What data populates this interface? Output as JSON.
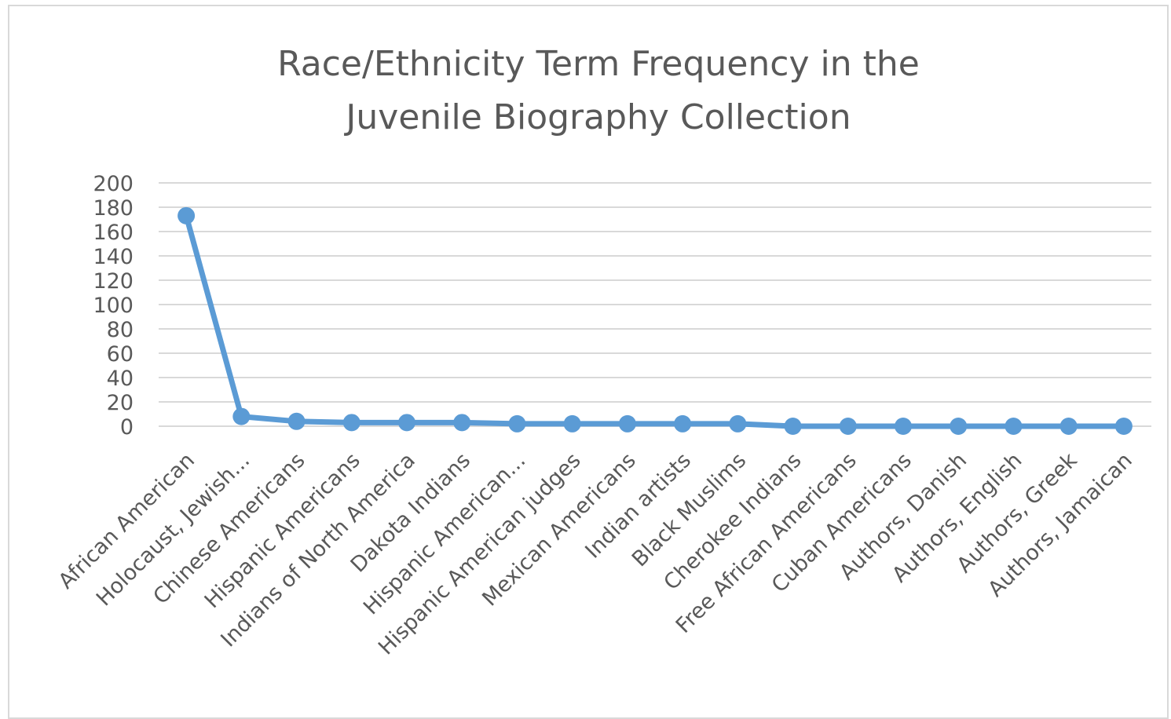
{
  "chart_data": {
    "type": "line",
    "title_lines": [
      "Race/Ethnicity Term Frequency in the",
      "Juvenile Biography Collection"
    ],
    "categories": [
      "African American",
      "Holocaust, Jewish...",
      "Chinese Americans",
      "Hispanic Americans",
      "Indians of North America",
      "Dakota Indians",
      "Hispanic American...",
      "Hispanic American judges",
      "Mexican Americans",
      "Indian artists",
      "Black Muslims",
      "Cherokee Indians",
      "Free African Americans",
      "Cuban Americans",
      "Authors, Danish",
      "Authors, English",
      "Authors, Greek",
      "Authors, Jamaican"
    ],
    "values": [
      173,
      8,
      4,
      3,
      3,
      3,
      2,
      2,
      2,
      2,
      2,
      0,
      0,
      0,
      0,
      0,
      0,
      0
    ],
    "ylim": [
      0,
      200
    ],
    "yticks": [
      "200",
      "180",
      "160",
      "140",
      "120",
      "100",
      "80",
      "60",
      "40",
      "20",
      "0"
    ],
    "grid": true,
    "legend": "none",
    "colors": {
      "line": "#5b9bd5",
      "grid": "#d9d9d9",
      "text": "#595959"
    }
  }
}
